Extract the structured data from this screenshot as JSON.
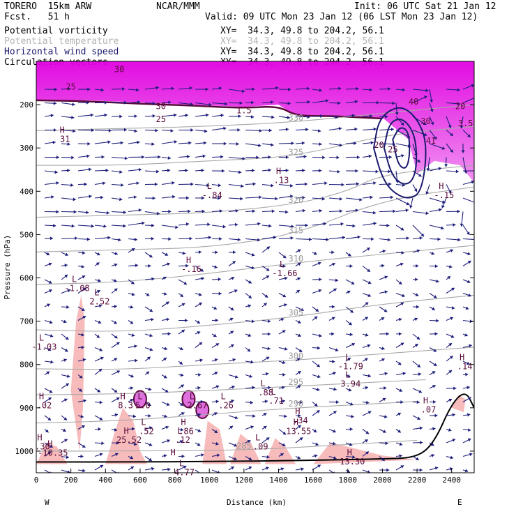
{
  "header": {
    "model": "TORERO  15km ARW",
    "center": "NCAR/MMM",
    "init": "Init: 06 UTC Sat 21 Jan 12",
    "fcst": "Fcst.   51 h",
    "valid": "Valid: 09 UTC Mon 23 Jan 12 (06 LST Mon 23 Jan 12)"
  },
  "legend": [
    {
      "name": "Potential vorticity",
      "color": "#000000",
      "xy": "XY=  34.3, 49.8 to 204.2, 56.1"
    },
    {
      "name": "Potential temperature",
      "color": "#b4b4b4",
      "xy": "XY=  34.3, 49.8 to 204.2, 56.1"
    },
    {
      "name": "Horizontal wind speed",
      "color": "#1a1a6e",
      "xy": "XY=  34.3, 49.8 to 204.2, 56.1"
    },
    {
      "name": "Circulation vectors",
      "color": "#000000",
      "xy": "XY=  34.3, 49.8 to 204.2, 56.1"
    }
  ],
  "chart_data": {
    "type": "cross-section",
    "xlabel": "Distance (km)",
    "ylabel": "Pressure (hPa)",
    "xlim": [
      0,
      2530
    ],
    "ylim": [
      1050,
      100
    ],
    "x_ticks": [
      0,
      200,
      400,
      600,
      800,
      1000,
      1200,
      1400,
      1600,
      1800,
      2000,
      2200,
      2400
    ],
    "y_ticks": [
      200,
      300,
      400,
      500,
      600,
      700,
      800,
      900,
      1000
    ],
    "x_end_labels": {
      "left": "W",
      "right": "E"
    },
    "theta_contours": [
      {
        "label": "285",
        "points": [
          [
            0,
            1000
          ],
          [
            600,
            1000
          ],
          [
            1200,
            998
          ],
          [
            1800,
            985
          ],
          [
            2200,
            975
          ]
        ]
      },
      {
        "label": "290",
        "points": [
          [
            0,
            935
          ],
          [
            500,
            930
          ],
          [
            1000,
            915
          ],
          [
            1500,
            900
          ],
          [
            2000,
            890
          ],
          [
            2200,
            885
          ]
        ]
      },
      {
        "label": "295",
        "points": [
          [
            0,
            870
          ],
          [
            500,
            868
          ],
          [
            1000,
            860
          ],
          [
            1500,
            850
          ],
          [
            2000,
            840
          ],
          [
            2250,
            835
          ]
        ]
      },
      {
        "label": "300",
        "points": [
          [
            0,
            810
          ],
          [
            500,
            812
          ],
          [
            1000,
            800
          ],
          [
            1500,
            790
          ],
          [
            2000,
            775
          ],
          [
            2530,
            760
          ]
        ]
      },
      {
        "label": "305",
        "points": [
          [
            0,
            720
          ],
          [
            500,
            725
          ],
          [
            1000,
            710
          ],
          [
            1500,
            690
          ],
          [
            2000,
            660
          ],
          [
            2530,
            640
          ]
        ]
      },
      {
        "label": "310",
        "points": [
          [
            0,
            615
          ],
          [
            500,
            610
          ],
          [
            1000,
            590
          ],
          [
            1500,
            565
          ],
          [
            2000,
            545
          ],
          [
            2530,
            525
          ]
        ]
      },
      {
        "label": "315",
        "points": [
          [
            0,
            540
          ],
          [
            500,
            535
          ],
          [
            1000,
            530
          ],
          [
            1500,
            500
          ],
          [
            2000,
            420
          ],
          [
            2530,
            390
          ]
        ]
      },
      {
        "label": "320",
        "points": [
          [
            0,
            460
          ],
          [
            500,
            455
          ],
          [
            1000,
            450
          ],
          [
            1500,
            430
          ],
          [
            1800,
            400
          ],
          [
            2000,
            360
          ],
          [
            2530,
            340
          ]
        ]
      },
      {
        "label": "325",
        "points": [
          [
            0,
            340
          ],
          [
            500,
            340
          ],
          [
            1000,
            330
          ],
          [
            1500,
            320
          ],
          [
            2000,
            270
          ],
          [
            2530,
            250
          ]
        ]
      },
      {
        "label": "330",
        "points": [
          [
            0,
            260
          ],
          [
            500,
            255
          ],
          [
            1000,
            250
          ],
          [
            1500,
            240
          ],
          [
            2000,
            220
          ],
          [
            2530,
            200
          ]
        ]
      }
    ],
    "wind_speed_contours": [
      {
        "label": "20",
        "points": [
          [
            1950,
            300
          ],
          [
            1980,
            230
          ],
          [
            2100,
            200
          ],
          [
            2200,
            230
          ],
          [
            2260,
            290
          ],
          [
            2230,
            400
          ],
          [
            2150,
            420
          ],
          [
            2050,
            400
          ],
          [
            1990,
            360
          ],
          [
            1950,
            300
          ]
        ]
      },
      {
        "label": "25",
        "points": [
          [
            2010,
            300
          ],
          [
            2040,
            240
          ],
          [
            2120,
            230
          ],
          [
            2190,
            270
          ],
          [
            2200,
            340
          ],
          [
            2170,
            380
          ],
          [
            2110,
            385
          ],
          [
            2050,
            360
          ],
          [
            2010,
            300
          ]
        ]
      },
      {
        "label": "30",
        "points": [
          [
            2060,
            280
          ],
          [
            2100,
            250
          ],
          [
            2150,
            260
          ],
          [
            2160,
            310
          ],
          [
            2140,
            350
          ],
          [
            2090,
            340
          ],
          [
            2060,
            280
          ]
        ]
      }
    ],
    "pv_labels": [
      {
        "x": 200,
        "p": 165,
        "text": "25"
      },
      {
        "x": 480,
        "p": 125,
        "text": "30"
      },
      {
        "x": 720,
        "p": 210,
        "text": "30"
      },
      {
        "x": 720,
        "p": 240,
        "text": "25"
      },
      {
        "x": 1200,
        "p": 220,
        "text": "1.5"
      },
      {
        "x": 1980,
        "p": 300,
        "text": "20"
      },
      {
        "x": 2060,
        "p": 310,
        "text": "25"
      },
      {
        "x": 2180,
        "p": 200,
        "text": "40"
      },
      {
        "x": 2250,
        "p": 245,
        "text": "30"
      },
      {
        "x": 2280,
        "p": 290,
        "text": "41"
      },
      {
        "x": 2450,
        "p": 210,
        "text": "20"
      },
      {
        "x": 2480,
        "p": 250,
        "text": "3.5"
      }
    ],
    "extrema": [
      {
        "type": "H",
        "x": 150,
        "p": 265,
        "value": "31"
      },
      {
        "type": "L",
        "x": 1000,
        "p": 395,
        "value": "-.84"
      },
      {
        "type": "H",
        "x": 1400,
        "p": 360,
        "value": ".13"
      },
      {
        "type": "H",
        "x": 2340,
        "p": 395,
        "value": "-.15"
      },
      {
        "type": "H",
        "x": 880,
        "p": 565,
        "value": "-.16"
      },
      {
        "type": "L",
        "x": 1420,
        "p": 575,
        "value": "-1.66"
      },
      {
        "type": "L",
        "x": 220,
        "p": 610,
        "value": "-1.08"
      },
      {
        "type": "L",
        "x": 350,
        "p": 640,
        "value": "2.52"
      },
      {
        "type": "L",
        "x": 30,
        "p": 745,
        "value": "-1.03"
      },
      {
        "type": "L",
        "x": 1800,
        "p": 790,
        "value": "-1.79"
      },
      {
        "type": "L",
        "x": 1800,
        "p": 830,
        "value": "3.94"
      },
      {
        "type": "H",
        "x": 2460,
        "p": 790,
        "value": ".14"
      },
      {
        "type": "H",
        "x": 30,
        "p": 880,
        "value": ".02"
      },
      {
        "type": "H",
        "x": 500,
        "p": 880,
        "value": "8.3"
      },
      {
        "type": "L",
        "x": 600,
        "p": 880,
        "value": "5.0"
      },
      {
        "type": "L",
        "x": 900,
        "p": 880,
        "value": "-2.67"
      },
      {
        "type": "L",
        "x": 1080,
        "p": 880,
        "value": ".26"
      },
      {
        "type": "L",
        "x": 1310,
        "p": 850,
        "value": ".88"
      },
      {
        "type": "L",
        "x": 1370,
        "p": 870,
        "value": ".71"
      },
      {
        "type": "H",
        "x": 2250,
        "p": 890,
        "value": ".07"
      },
      {
        "type": "H",
        "x": 520,
        "p": 960,
        "value": "25.52"
      },
      {
        "type": "L",
        "x": 620,
        "p": 940,
        "value": ".52"
      },
      {
        "type": "H",
        "x": 850,
        "p": 940,
        "value": ".86"
      },
      {
        "type": "L",
        "x": 830,
        "p": 960,
        "value": ".12"
      },
      {
        "type": "H",
        "x": 1500,
        "p": 940,
        "value": "13.55"
      },
      {
        "type": "H",
        "x": 1510,
        "p": 915,
        "value": ".34"
      },
      {
        "type": "H",
        "x": 80,
        "p": 990,
        "value": "-10.35"
      },
      {
        "type": "H",
        "x": 20,
        "p": 975,
        "value": ".30"
      },
      {
        "type": "L",
        "x": 1280,
        "p": 975,
        "value": ".09"
      },
      {
        "type": "H",
        "x": 1810,
        "p": 1010,
        "value": "13.30"
      },
      {
        "type": "L",
        "x": 840,
        "p": 1035,
        "value": "4.77"
      },
      {
        "type": "H",
        "x": 790,
        "p": 1010,
        "value": ""
      }
    ]
  }
}
